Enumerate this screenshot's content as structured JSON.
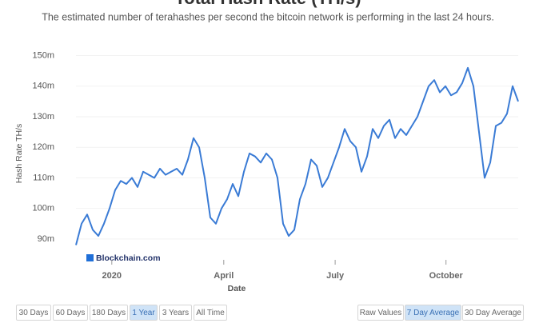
{
  "chart_data": {
    "type": "line",
    "title": "Total Hash Rate (TH/s)",
    "subtitle": "The estimated number of terahashes per second the bitcoin network is performing in the last 24 hours.",
    "y_label": "Hash Rate TH/s",
    "x_label": "Date",
    "watermark": "Blockchain.com",
    "series": [
      {
        "name": "Hash Rate",
        "color": "#3a7bd5",
        "values": [
          88,
          95,
          98,
          93,
          91,
          95,
          100,
          106,
          109,
          108,
          110,
          107,
          112,
          111,
          110,
          113,
          111,
          112,
          113,
          111,
          116,
          123,
          120,
          110,
          97,
          95,
          100,
          103,
          108,
          104,
          112,
          118,
          117,
          115,
          118,
          116,
          110,
          95,
          91,
          93,
          103,
          108,
          116,
          114,
          107,
          110,
          115,
          120,
          126,
          122,
          120,
          112,
          117,
          126,
          123,
          127,
          129,
          123,
          126,
          124,
          127,
          130,
          135,
          140,
          142,
          138,
          140,
          137,
          138,
          141,
          146,
          140,
          125,
          110,
          115,
          127,
          128,
          131,
          140,
          135
        ]
      }
    ],
    "xlim": [
      0,
      79
    ],
    "xticks": [
      {
        "value": 6.4,
        "label": "2020"
      },
      {
        "value": 26.4,
        "label": "April"
      },
      {
        "value": 46.3,
        "label": "July"
      },
      {
        "value": 66.1,
        "label": "October"
      }
    ],
    "ylim": [
      85,
      152.5
    ],
    "yticks": [
      {
        "value": 90,
        "label": "90m"
      },
      {
        "value": 100,
        "label": "100m"
      },
      {
        "value": 110,
        "label": "110m"
      },
      {
        "value": 120,
        "label": "120m"
      },
      {
        "value": 130,
        "label": "130m"
      },
      {
        "value": 140,
        "label": "140m"
      },
      {
        "value": 150,
        "label": "150m"
      }
    ]
  },
  "range_buttons": {
    "labels": [
      "30 Days",
      "60 Days",
      "180 Days",
      "1 Year",
      "3 Years",
      "All Time"
    ],
    "selected": 3
  },
  "smoothing_buttons": {
    "labels": [
      "Raw Values",
      "7 Day Average",
      "30 Day Average"
    ],
    "selected": 1
  }
}
